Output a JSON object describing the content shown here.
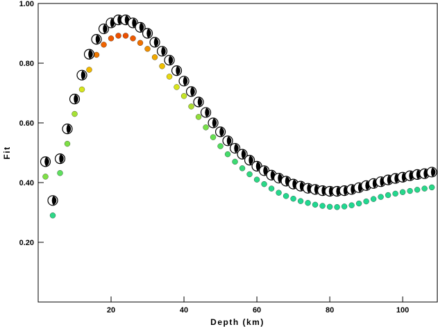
{
  "chart_data": {
    "type": "scatter",
    "xlabel": "Depth (km)",
    "ylabel": "Fit",
    "xlim": [
      0,
      109.5
    ],
    "ylim": [
      0.0,
      1.0
    ],
    "x_ticks": [
      {
        "value": 20,
        "label": "20"
      },
      {
        "value": 40,
        "label": "40"
      },
      {
        "value": 60,
        "label": "60"
      },
      {
        "value": 80,
        "label": "80"
      },
      {
        "value": 100,
        "label": "100"
      }
    ],
    "y_ticks": [
      {
        "value": 0.2,
        "label": "0.20"
      },
      {
        "value": 0.4,
        "label": "0.40"
      },
      {
        "value": 0.6,
        "label": "0.60"
      },
      {
        "value": 0.8,
        "label": "0.80"
      },
      {
        "value": 1.0,
        "label": "1.00"
      }
    ],
    "grid": false,
    "series": [
      {
        "marker": "beachball",
        "x": [
          2,
          4,
          6,
          8,
          10,
          12,
          14,
          16,
          18,
          20,
          22,
          24,
          26,
          28,
          30,
          32,
          34,
          36,
          38,
          40,
          42,
          44,
          46,
          48,
          50,
          52,
          54,
          56,
          58,
          60,
          62,
          64,
          66,
          68,
          70,
          72,
          74,
          76,
          78,
          80,
          82,
          84,
          86,
          88,
          90,
          92,
          94,
          96,
          98,
          100,
          102,
          104,
          106,
          108
        ],
        "y": [
          0.47,
          0.34,
          0.48,
          0.58,
          0.68,
          0.76,
          0.83,
          0.88,
          0.915,
          0.935,
          0.945,
          0.945,
          0.935,
          0.92,
          0.9,
          0.87,
          0.84,
          0.81,
          0.775,
          0.74,
          0.705,
          0.67,
          0.635,
          0.6,
          0.57,
          0.54,
          0.515,
          0.495,
          0.475,
          0.455,
          0.44,
          0.425,
          0.415,
          0.405,
          0.395,
          0.388,
          0.381,
          0.377,
          0.373,
          0.371,
          0.371,
          0.373,
          0.377,
          0.383,
          0.39,
          0.397,
          0.403,
          0.409,
          0.414,
          0.418,
          0.423,
          0.427,
          0.43,
          0.435
        ]
      },
      {
        "marker": "dot",
        "x": [
          2,
          4,
          6,
          8,
          10,
          12,
          14,
          16,
          18,
          20,
          22,
          24,
          26,
          28,
          30,
          32,
          34,
          36,
          38,
          40,
          42,
          44,
          46,
          48,
          50,
          52,
          54,
          56,
          58,
          60,
          62,
          64,
          66,
          68,
          70,
          72,
          74,
          76,
          78,
          80,
          82,
          84,
          86,
          88,
          90,
          92,
          94,
          96,
          98,
          100,
          102,
          104,
          106,
          108
        ],
        "y": [
          0.42,
          0.29,
          0.432,
          0.53,
          0.63,
          0.712,
          0.778,
          0.828,
          0.862,
          0.883,
          0.892,
          0.892,
          0.883,
          0.868,
          0.848,
          0.82,
          0.79,
          0.755,
          0.72,
          0.69,
          0.655,
          0.62,
          0.585,
          0.552,
          0.522,
          0.495,
          0.47,
          0.448,
          0.428,
          0.41,
          0.395,
          0.38,
          0.366,
          0.355,
          0.346,
          0.338,
          0.332,
          0.326,
          0.322,
          0.319,
          0.318,
          0.32,
          0.324,
          0.33,
          0.337,
          0.345,
          0.352,
          0.358,
          0.363,
          0.368,
          0.372,
          0.376,
          0.38,
          0.384
        ],
        "colors": [
          "#7ee046",
          "#2ed887",
          "#5ee05e",
          "#7ee046",
          "#a6e234",
          "#d6e61e",
          "#f0b800",
          "#f07800",
          "#f06400",
          "#ee5a00",
          "#ec5000",
          "#ec5000",
          "#ee5a00",
          "#f07000",
          "#f09000",
          "#f0a800",
          "#f0c000",
          "#e8d812",
          "#d8e41c",
          "#c4e426",
          "#acde30",
          "#92de3c",
          "#78e04a",
          "#66e052",
          "#52de5e",
          "#44dc6a",
          "#3cda72",
          "#36d87a",
          "#30d880",
          "#2cd884",
          "#2ad888",
          "#28d88a",
          "#26d88c",
          "#24d88e",
          "#22d890",
          "#22d890",
          "#20d890",
          "#20d890",
          "#20d890",
          "#20d890",
          "#20d890",
          "#20d890",
          "#20d890",
          "#20d890",
          "#22d890",
          "#22d890",
          "#22d890",
          "#24d88e",
          "#24d88e",
          "#26d88c",
          "#26d88c",
          "#28d88a",
          "#28d88a",
          "#2ad888"
        ]
      }
    ]
  }
}
